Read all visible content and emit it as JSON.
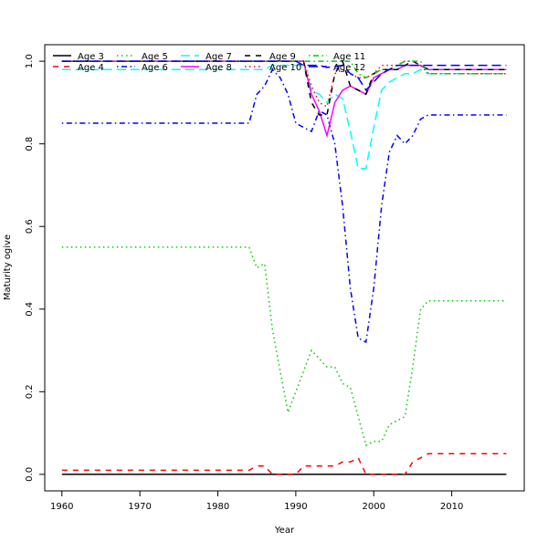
{
  "chart_data": {
    "type": "line",
    "title": "",
    "xlabel": "Year",
    "ylabel": "Maturity ogive",
    "xlim": [
      1957.8,
      2019.3
    ],
    "ylim": [
      -0.04,
      1.04
    ],
    "xticks": [
      "1960",
      "1970",
      "1980",
      "1990",
      "2000",
      "2010"
    ],
    "yticks": [
      "0.0",
      "0.2",
      "0.4",
      "0.6",
      "0.8",
      "1.0"
    ],
    "grid": false,
    "legend_position": "top-left",
    "series": [
      {
        "name": "Age 3",
        "color": "#000000",
        "dash": "solid",
        "x": [
          1960,
          2017
        ],
        "y": [
          0,
          0
        ]
      },
      {
        "name": "Age 4",
        "color": "#ff0000",
        "dash": "dashed",
        "x": [
          1960,
          1984,
          1985,
          1986,
          1987,
          1990,
          1991,
          1995,
          1996,
          1997,
          1998,
          1999,
          2004,
          2005,
          2006,
          2007,
          2017
        ],
        "y": [
          0.01,
          0.01,
          0.02,
          0.02,
          0,
          0,
          0.02,
          0.02,
          0.03,
          0.03,
          0.04,
          0,
          0,
          0.03,
          0.04,
          0.05,
          0.05
        ]
      },
      {
        "name": "Age 5",
        "color": "#00cd00",
        "dash": "dotted",
        "x": [
          1960,
          1984,
          1985,
          1986,
          1987,
          1988,
          1989,
          1990,
          1991,
          1992,
          1993,
          1994,
          1995,
          1996,
          1997,
          1998,
          1999,
          2000,
          2001,
          2002,
          2003,
          2004,
          2005,
          2006,
          2007,
          2017
        ],
        "y": [
          0.55,
          0.55,
          0.5,
          0.51,
          0.35,
          0.25,
          0.15,
          0.2,
          0.25,
          0.3,
          0.28,
          0.26,
          0.26,
          0.22,
          0.21,
          0.14,
          0.07,
          0.08,
          0.08,
          0.12,
          0.13,
          0.14,
          0.26,
          0.4,
          0.42,
          0.42
        ]
      },
      {
        "name": "Age 6",
        "color": "#0000ff",
        "dash": "dotdash",
        "x": [
          1960,
          1984,
          1985,
          1986,
          1987,
          1988,
          1989,
          1990,
          1991,
          1992,
          1993,
          1994,
          1995,
          1996,
          1997,
          1998,
          1999,
          2000,
          2001,
          2002,
          2003,
          2004,
          2005,
          2006,
          2007,
          2017
        ],
        "y": [
          0.85,
          0.85,
          0.92,
          0.94,
          0.98,
          0.96,
          0.92,
          0.85,
          0.84,
          0.83,
          0.88,
          0.87,
          0.8,
          0.65,
          0.45,
          0.33,
          0.32,
          0.45,
          0.65,
          0.78,
          0.82,
          0.8,
          0.82,
          0.86,
          0.87,
          0.87
        ]
      },
      {
        "name": "Age 7",
        "color": "#00ffff",
        "dash": "longdash",
        "x": [
          1960,
          1986,
          1987,
          1991,
          1992,
          1993,
          1994,
          1995,
          1996,
          1997,
          1998,
          1999,
          2000,
          2001,
          2002,
          2003,
          2004,
          2005,
          2006,
          2007,
          2017
        ],
        "y": [
          0.98,
          0.98,
          0.99,
          0.99,
          0.93,
          0.92,
          0.9,
          0.92,
          0.91,
          0.83,
          0.74,
          0.74,
          0.84,
          0.93,
          0.95,
          0.96,
          0.97,
          0.97,
          0.98,
          0.97,
          0.97
        ]
      },
      {
        "name": "Age 8",
        "color": "#ff00ff",
        "dash": "solid",
        "x": [
          1960,
          1991,
          1992,
          1993,
          1994,
          1995,
          1996,
          1997,
          1998,
          1999,
          2000,
          2001,
          2002,
          2003,
          2004,
          2005,
          2006,
          2007,
          2017
        ],
        "y": [
          1,
          1,
          0.92,
          0.88,
          0.82,
          0.9,
          0.93,
          0.94,
          0.93,
          0.92,
          0.96,
          0.97,
          0.98,
          0.98,
          0.99,
          0.99,
          0.99,
          0.98,
          0.98
        ]
      },
      {
        "name": "Age 9",
        "color": "#000000",
        "dash": "dashed",
        "x": [
          1960,
          1991,
          1992,
          1993,
          1994,
          1995,
          1996,
          1997,
          1998,
          1999,
          2000,
          2001,
          2002,
          2003,
          2004,
          2005,
          2006,
          2007,
          2017
        ],
        "y": [
          1,
          1,
          0.9,
          0.87,
          0.87,
          0.97,
          1.0,
          0.94,
          0.93,
          0.92,
          0.97,
          0.98,
          0.98,
          0.98,
          0.99,
          1.0,
          0.99,
          0.98,
          0.98
        ]
      },
      {
        "name": "Age 10",
        "color": "#ff0000",
        "dash": "dotted",
        "x": [
          1960,
          1991,
          1992,
          1993,
          1994,
          1995,
          1996,
          1997,
          1998,
          1999,
          2000,
          2001,
          2002,
          2003,
          2004,
          2005,
          2006,
          2007,
          2017
        ],
        "y": [
          1,
          1,
          0.94,
          0.9,
          0.89,
          0.97,
          0.98,
          0.97,
          0.96,
          0.96,
          0.97,
          0.99,
          0.99,
          0.99,
          1.0,
          1.0,
          0.99,
          0.97,
          0.97
        ]
      },
      {
        "name": "Age 11",
        "color": "#00cd00",
        "dash": "dotdash",
        "x": [
          1960,
          1997,
          1998,
          1999,
          2000,
          2001,
          2002,
          2003,
          2004,
          2005,
          2006,
          2007,
          2017
        ],
        "y": [
          1,
          1,
          0.97,
          0.96,
          0.97,
          0.98,
          0.98,
          0.99,
          1.0,
          1.0,
          1.0,
          0.97,
          0.97
        ]
      },
      {
        "name": "Age 12",
        "color": "#0000ff",
        "dash": "longdash",
        "x": [
          1960,
          1990,
          1991,
          1993,
          1994,
          1996,
          1997,
          1998,
          1999,
          2000,
          2001,
          2002,
          2003,
          2017
        ],
        "y": [
          1,
          1,
          0.99,
          0.99,
          0.985,
          0.99,
          0.97,
          0.96,
          0.93,
          0.95,
          0.97,
          0.98,
          0.99,
          0.99
        ]
      }
    ]
  }
}
